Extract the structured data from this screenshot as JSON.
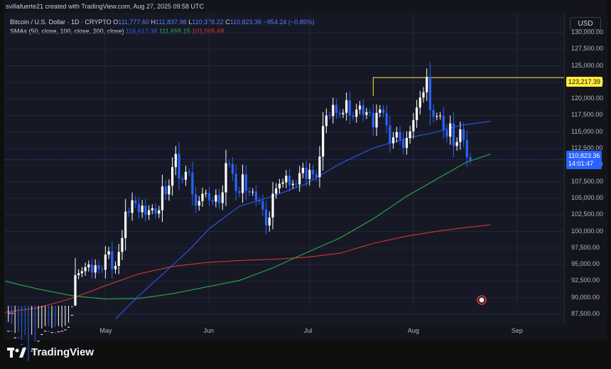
{
  "header": {
    "publisher": "svillafuerte21 created with TradingView.com, Aug 27, 2025 09:58 UTC",
    "symbol_line": "Bitcoin / U.S. Dollar · 1D · CRYPTO",
    "ohlc": {
      "o_label": "O",
      "o": "111,777.60",
      "h_label": "H",
      "h": "111,837.98",
      "l_label": "L",
      "l": "110,378.22",
      "c_label": "C",
      "c": "110,823.36",
      "change": "−954.24 (−0.85%)"
    },
    "sma_label": "SMAs (50, close, 100, close, 200, close)",
    "sma_values": {
      "sma50": "116,617.38",
      "sma100": "111,655.15",
      "sma200": "101,005.68"
    }
  },
  "axis": {
    "currency": "USD"
  },
  "tags": {
    "resistance": "123,217.39",
    "last_price": "110,823.36",
    "countdown": "14:01:47"
  },
  "footer": {
    "brand": "TradingView"
  },
  "colors": {
    "sma50": "#2e5bff",
    "sma100": "#2eb84f",
    "sma200": "#e53935",
    "resistance": "#ffeb3b",
    "up": "#ffffff",
    "down": "#2962ff"
  },
  "chart_data": {
    "type": "candlestick",
    "ylim": [
      86000,
      133000
    ],
    "y_ticks": [
      130000,
      127500,
      125000,
      122500,
      120000,
      117500,
      115000,
      112500,
      110000,
      107500,
      105000,
      102500,
      100000,
      97500,
      95000,
      92500,
      90000,
      87500
    ],
    "y_tick_labels": [
      "130,000.00",
      "127,500.00",
      "125,000.00",
      "122,500.00",
      "120,000.00",
      "117,500.00",
      "115,000.00",
      "112,500.00",
      "110,000.00",
      "107,500.00",
      "105,000.00",
      "102,500.00",
      "100,000.00",
      "97,500.00",
      "95,000.00",
      "92,500.00",
      "90,000.00",
      "87,500.00"
    ],
    "x_ticks": [
      {
        "label": "May",
        "day": 30
      },
      {
        "label": "Jun",
        "day": 61
      },
      {
        "label": "Jul",
        "day": 91
      },
      {
        "label": "Aug",
        "day": 122
      },
      {
        "label": "Sep",
        "day": 153
      }
    ],
    "first_day": "2025-04-01",
    "candles_close": [
      82500,
      85000,
      83500,
      84000,
      83000,
      82600,
      79000,
      76500,
      82000,
      79500,
      83500,
      84500,
      85000,
      84500,
      84800,
      84000,
      84900,
      85000,
      85200,
      85600,
      87400,
      93400,
      93700,
      94000,
      94600,
      95000,
      93800,
      94900,
      94300,
      94200,
      96500,
      97000,
      94300,
      94800,
      96900,
      99000,
      103000,
      102800,
      104700,
      104200,
      102900,
      103900,
      102500,
      103200,
      103500,
      102700,
      103200,
      106800,
      105600,
      106900,
      109700,
      111700,
      108000,
      107800,
      109000,
      108900,
      105600,
      103900,
      104600,
      105700,
      105800,
      104700,
      104500,
      105500,
      104300,
      105900,
      110300,
      110200,
      108700,
      106100,
      105800,
      108600,
      106100,
      105900,
      106000,
      104700,
      104600,
      103300,
      100900,
      102100,
      105700,
      106500,
      107200,
      107400,
      108400,
      107000,
      107200,
      107100,
      108800,
      109600,
      107900,
      109300,
      108600,
      108200,
      111300,
      115900,
      117500,
      117400,
      119100,
      117900,
      117700,
      117900,
      119800,
      117500,
      117300,
      118400,
      119000,
      117600,
      118000,
      117900,
      115700,
      117900,
      118400,
      117900,
      116000,
      113300,
      114200,
      115000,
      113900,
      112600,
      114100,
      115100,
      116800,
      118700,
      120200,
      121000,
      123300,
      118300,
      117300,
      117400,
      117500,
      115300,
      114300,
      116300,
      112900,
      113500,
      115400,
      113800,
      111200,
      110823
    ],
    "sma50": [
      [
        33,
        86800
      ],
      [
        40,
        90300
      ],
      [
        47,
        93500
      ],
      [
        55,
        97200
      ],
      [
        61,
        100400
      ],
      [
        70,
        103800
      ],
      [
        80,
        105300
      ],
      [
        90,
        107200
      ],
      [
        100,
        110200
      ],
      [
        110,
        112600
      ],
      [
        121,
        114200
      ],
      [
        128,
        114900
      ],
      [
        136,
        116000
      ],
      [
        145,
        116617
      ]
    ],
    "sma100": [
      [
        0,
        92500
      ],
      [
        10,
        91300
      ],
      [
        20,
        90300
      ],
      [
        30,
        89800
      ],
      [
        40,
        89900
      ],
      [
        50,
        90600
      ],
      [
        60,
        91600
      ],
      [
        70,
        92600
      ],
      [
        80,
        94500
      ],
      [
        90,
        96800
      ],
      [
        100,
        99000
      ],
      [
        110,
        101900
      ],
      [
        120,
        105300
      ],
      [
        130,
        108200
      ],
      [
        138,
        110500
      ],
      [
        145,
        111655
      ]
    ],
    "sma200": [
      [
        0,
        87800
      ],
      [
        10,
        88500
      ],
      [
        20,
        89900
      ],
      [
        30,
        91800
      ],
      [
        40,
        93600
      ],
      [
        50,
        94700
      ],
      [
        60,
        95300
      ],
      [
        70,
        95600
      ],
      [
        80,
        95800
      ],
      [
        90,
        96100
      ],
      [
        100,
        96700
      ],
      [
        110,
        98200
      ],
      [
        120,
        99300
      ],
      [
        130,
        100100
      ],
      [
        138,
        100600
      ],
      [
        145,
        101005
      ]
    ],
    "resistance_level": 123217.39,
    "resistance_from_day": 110
  }
}
